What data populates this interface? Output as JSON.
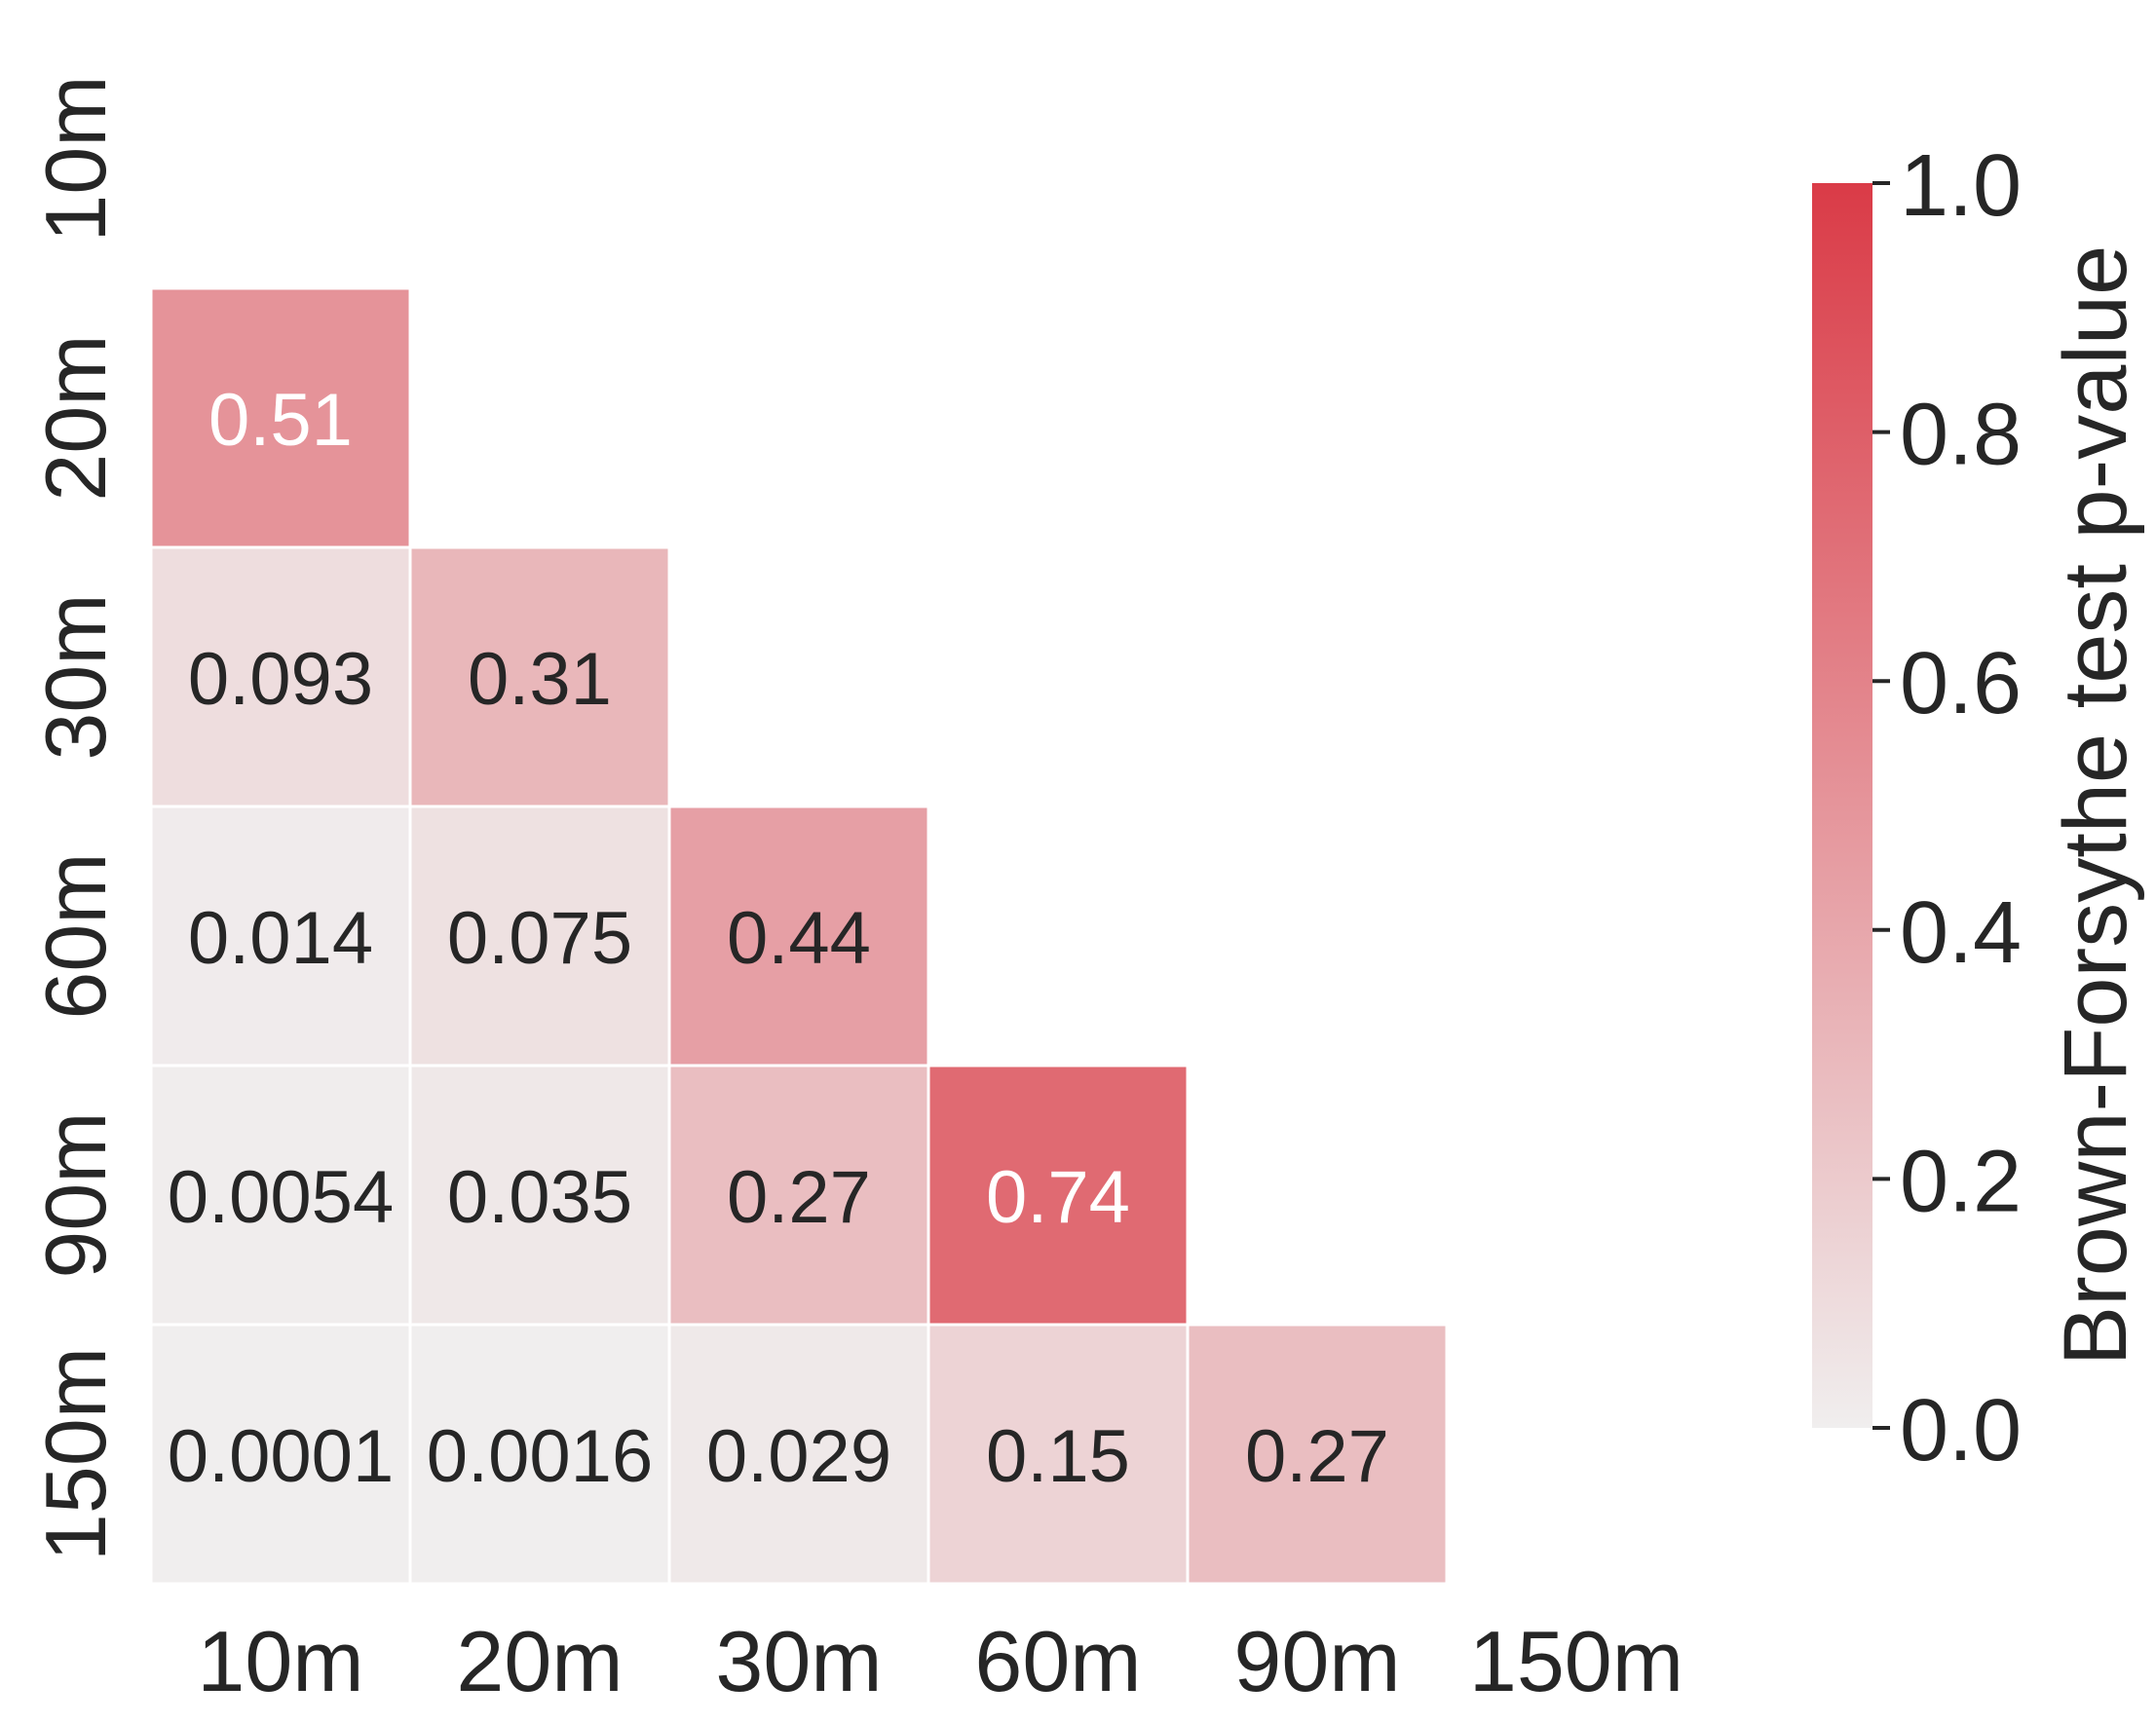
{
  "chart_data": {
    "type": "heatmap",
    "title": "",
    "xlabel": "",
    "ylabel": "",
    "x_categories": [
      "10m",
      "20m",
      "30m",
      "60m",
      "90m",
      "150m"
    ],
    "y_categories": [
      "10m",
      "20m",
      "30m",
      "60m",
      "90m",
      "150m"
    ],
    "mask": "upper triangle including diagonal",
    "cells": [
      {
        "row": "20m",
        "col": "10m",
        "value": 0.51,
        "label": "0.51"
      },
      {
        "row": "30m",
        "col": "10m",
        "value": 0.093,
        "label": "0.093"
      },
      {
        "row": "30m",
        "col": "20m",
        "value": 0.31,
        "label": "0.31"
      },
      {
        "row": "60m",
        "col": "10m",
        "value": 0.014,
        "label": "0.014"
      },
      {
        "row": "60m",
        "col": "20m",
        "value": 0.075,
        "label": "0.075"
      },
      {
        "row": "60m",
        "col": "30m",
        "value": 0.44,
        "label": "0.44"
      },
      {
        "row": "90m",
        "col": "10m",
        "value": 0.0054,
        "label": "0.0054"
      },
      {
        "row": "90m",
        "col": "20m",
        "value": 0.035,
        "label": "0.035"
      },
      {
        "row": "90m",
        "col": "30m",
        "value": 0.27,
        "label": "0.27"
      },
      {
        "row": "90m",
        "col": "60m",
        "value": 0.74,
        "label": "0.74"
      },
      {
        "row": "150m",
        "col": "10m",
        "value": 0.0001,
        "label": "0.0001"
      },
      {
        "row": "150m",
        "col": "20m",
        "value": 0.0016,
        "label": "0.0016"
      },
      {
        "row": "150m",
        "col": "30m",
        "value": 0.029,
        "label": "0.029"
      },
      {
        "row": "150m",
        "col": "60m",
        "value": 0.15,
        "label": "0.15"
      },
      {
        "row": "150m",
        "col": "90m",
        "value": 0.27,
        "label": "0.27"
      }
    ],
    "colorbar": {
      "label": "Brown-Forsythe test p-value",
      "range": [
        0.0,
        1.0
      ],
      "ticks": [
        0.0,
        0.2,
        0.4,
        0.6,
        0.8,
        1.0
      ],
      "tick_labels": [
        "0.0",
        "0.2",
        "0.4",
        "0.6",
        "0.8",
        "1.0"
      ],
      "color_low": "#f0eeee",
      "color_high": "#da3b47"
    },
    "grid": false,
    "colors": {
      "cell_border": "#ffffff",
      "text_dark": "#262626",
      "text_light": "#ffffff"
    }
  }
}
